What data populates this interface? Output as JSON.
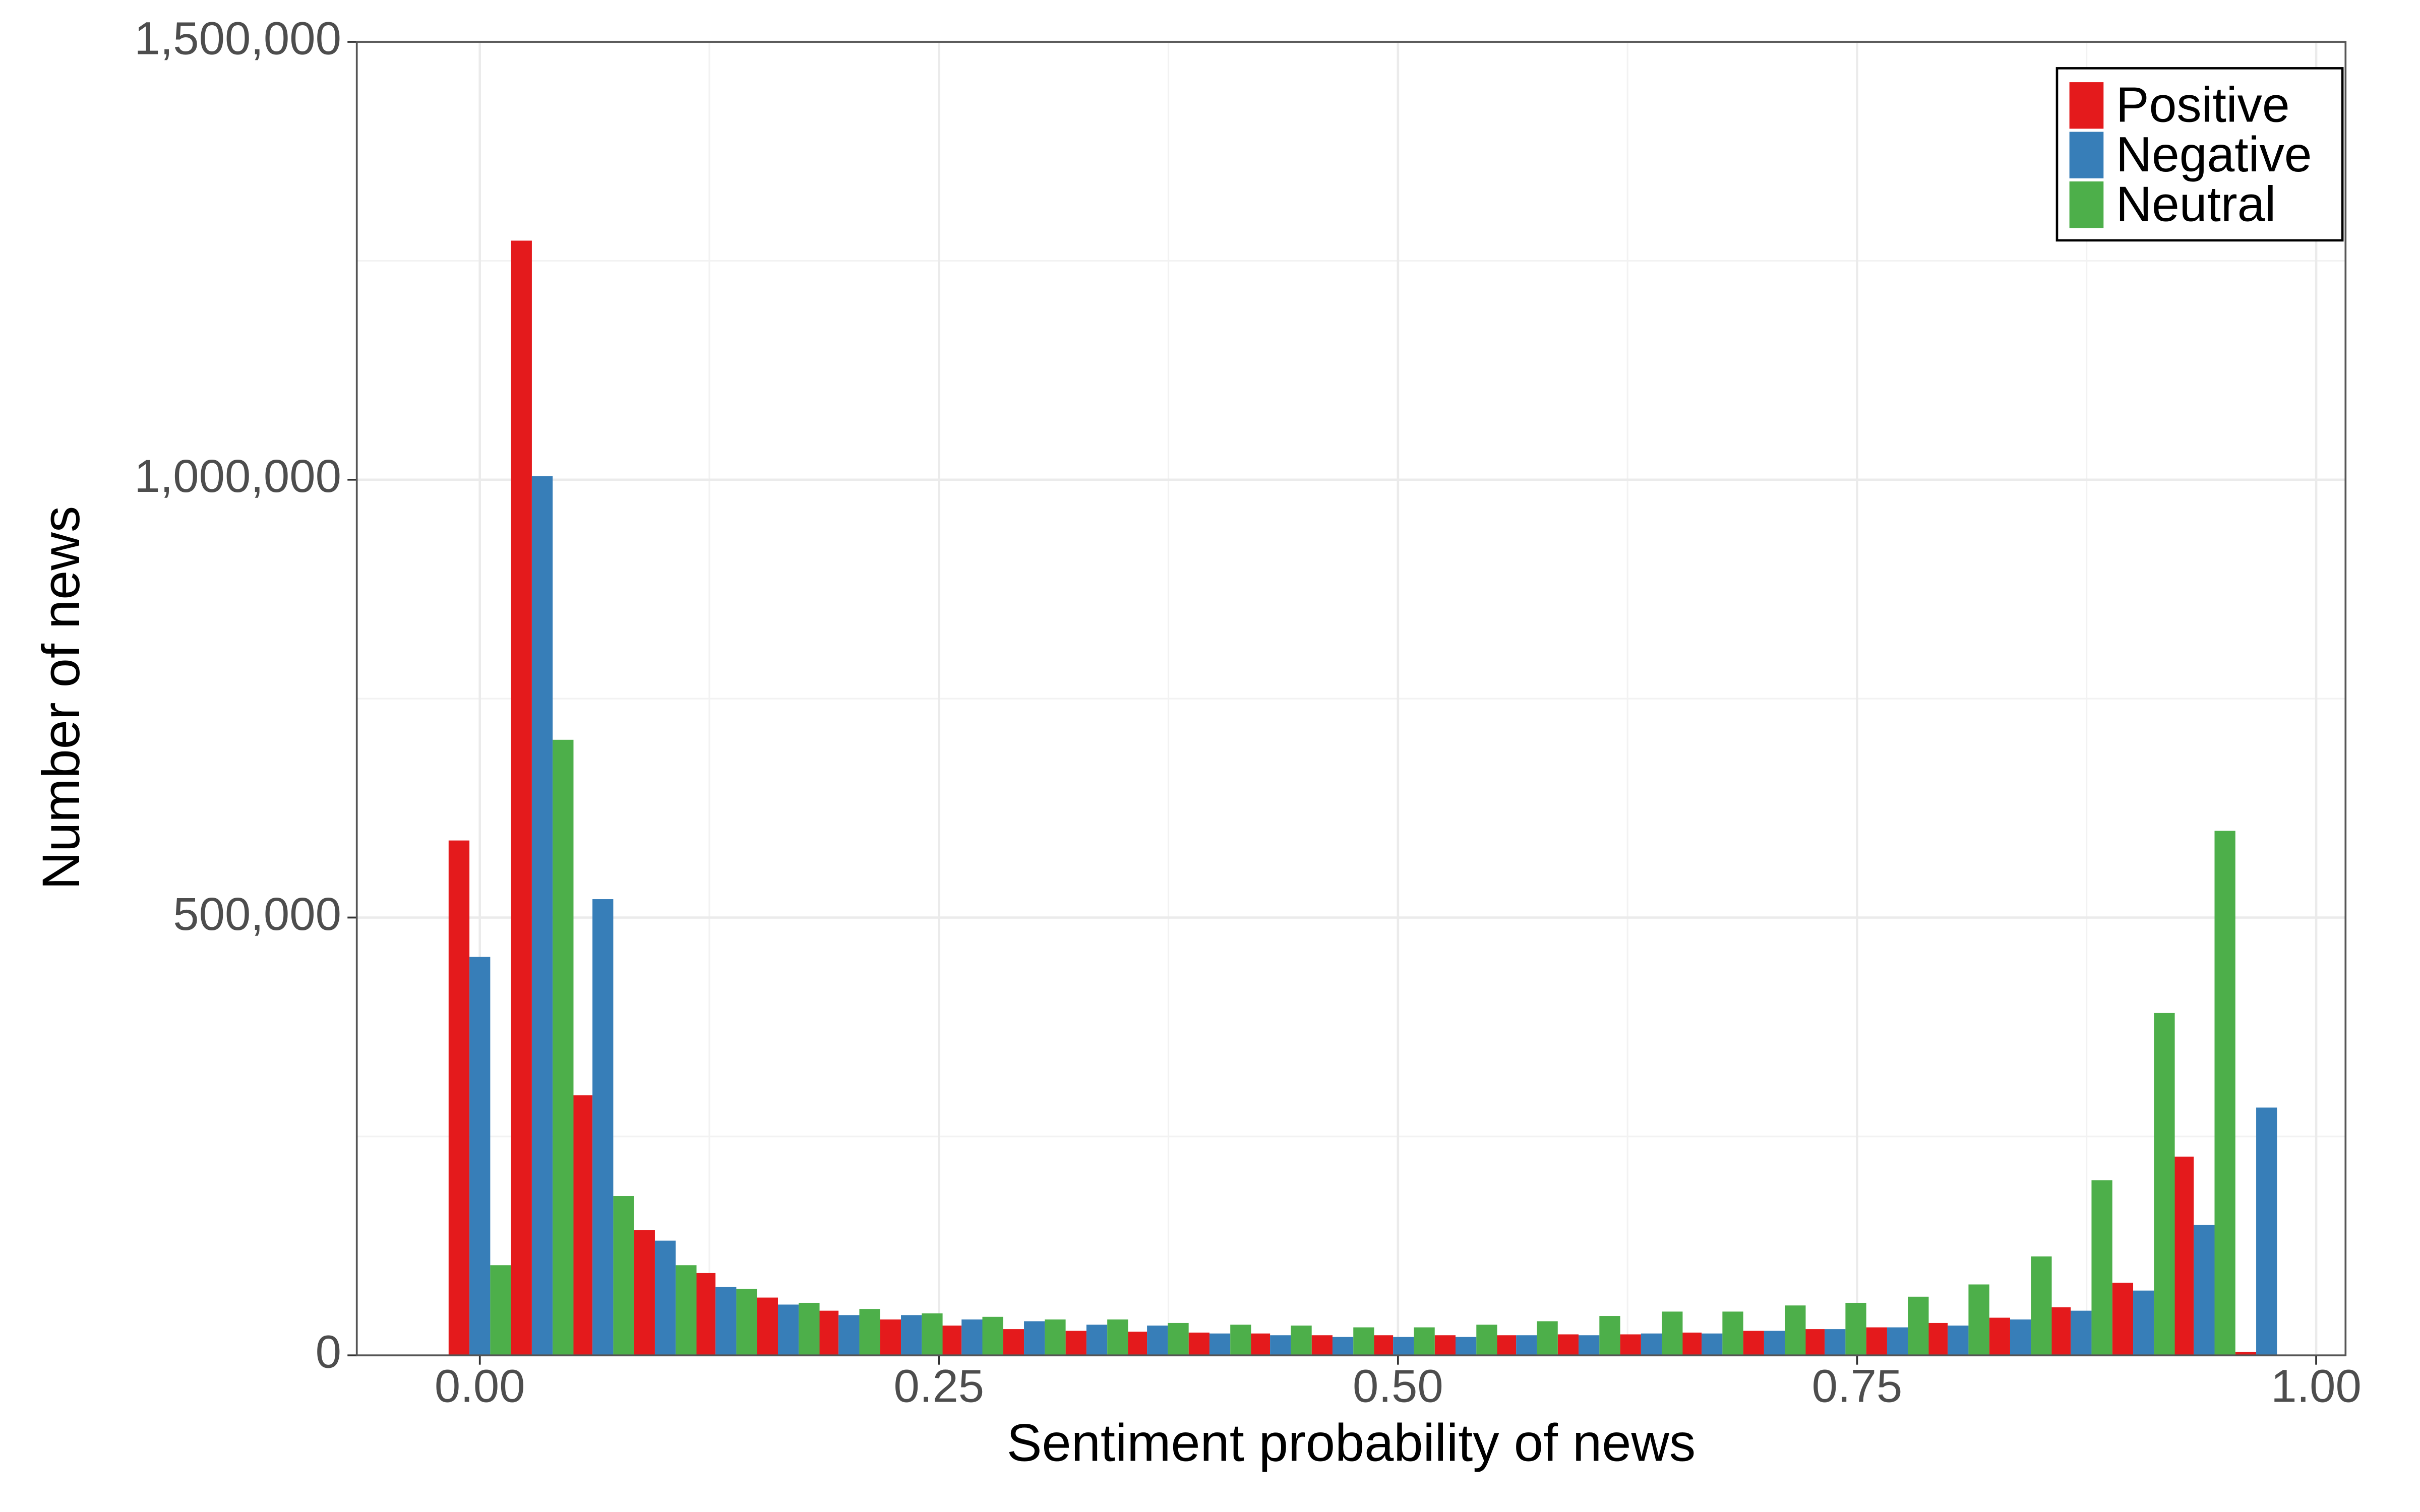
{
  "chart_data": {
    "type": "bar",
    "x_label": "Sentiment probability of news",
    "y_label": "Number of news",
    "x": [
      0,
      0.034,
      0.067,
      0.101,
      0.134,
      0.168,
      0.201,
      0.235,
      0.268,
      0.302,
      0.336,
      0.369,
      0.403,
      0.436,
      0.47,
      0.503,
      0.537,
      0.57,
      0.604,
      0.638,
      0.671,
      0.705,
      0.738,
      0.772,
      0.805,
      0.839,
      0.872,
      0.906,
      0.939,
      0.973
    ],
    "series": [
      {
        "name": "Positive",
        "color": "#e41a1c",
        "values": [
          588000,
          1273000,
          297000,
          143000,
          94000,
          66000,
          51000,
          41000,
          34000,
          30000,
          28000,
          27000,
          26000,
          25000,
          23000,
          23000,
          23000,
          23000,
          24000,
          24000,
          26000,
          28000,
          30000,
          32000,
          37000,
          43000,
          55000,
          83000,
          227000,
          4000
        ]
      },
      {
        "name": "Negative",
        "color": "#377eb8",
        "values": [
          455000,
          1004000,
          521000,
          131000,
          78000,
          58000,
          46000,
          46000,
          41000,
          39000,
          35000,
          34000,
          25000,
          23000,
          21000,
          21000,
          21000,
          23000,
          23000,
          25000,
          25000,
          28000,
          30000,
          32000,
          34000,
          41000,
          51000,
          74000,
          149000,
          283000
        ]
      },
      {
        "name": "Neutral",
        "color": "#4daf4a",
        "values": [
          103000,
          703000,
          182000,
          103000,
          76000,
          60000,
          53000,
          48000,
          44000,
          41000,
          41000,
          37000,
          35000,
          34000,
          32000,
          32000,
          35000,
          39000,
          45000,
          50000,
          50000,
          57000,
          60000,
          67000,
          81000,
          113000,
          200000,
          391000,
          599000,
          0
        ]
      }
    ],
    "xlim": [
      -0.067,
      1.016
    ],
    "ylim": [
      0,
      1500000
    ],
    "xticks": [
      {
        "value": 0,
        "label": "0.00"
      },
      {
        "value": 0.25,
        "label": "0.25"
      },
      {
        "value": 0.5,
        "label": "0.50"
      },
      {
        "value": 0.75,
        "label": "0.75"
      },
      {
        "value": 1,
        "label": "1.00"
      }
    ],
    "yticks": [
      0,
      {
        "value": 500000,
        "label": "500,000"
      },
      {
        "value": 1000000,
        "label": "1,000,000"
      },
      {
        "value": 1500000,
        "label": "1,500,000"
      }
    ],
    "x_minor_grid": [
      0.125,
      0.375,
      0.625,
      0.875
    ],
    "y_minor_grid": [
      250000,
      750000,
      1250000
    ],
    "grid": true,
    "legend": "top-right"
  }
}
